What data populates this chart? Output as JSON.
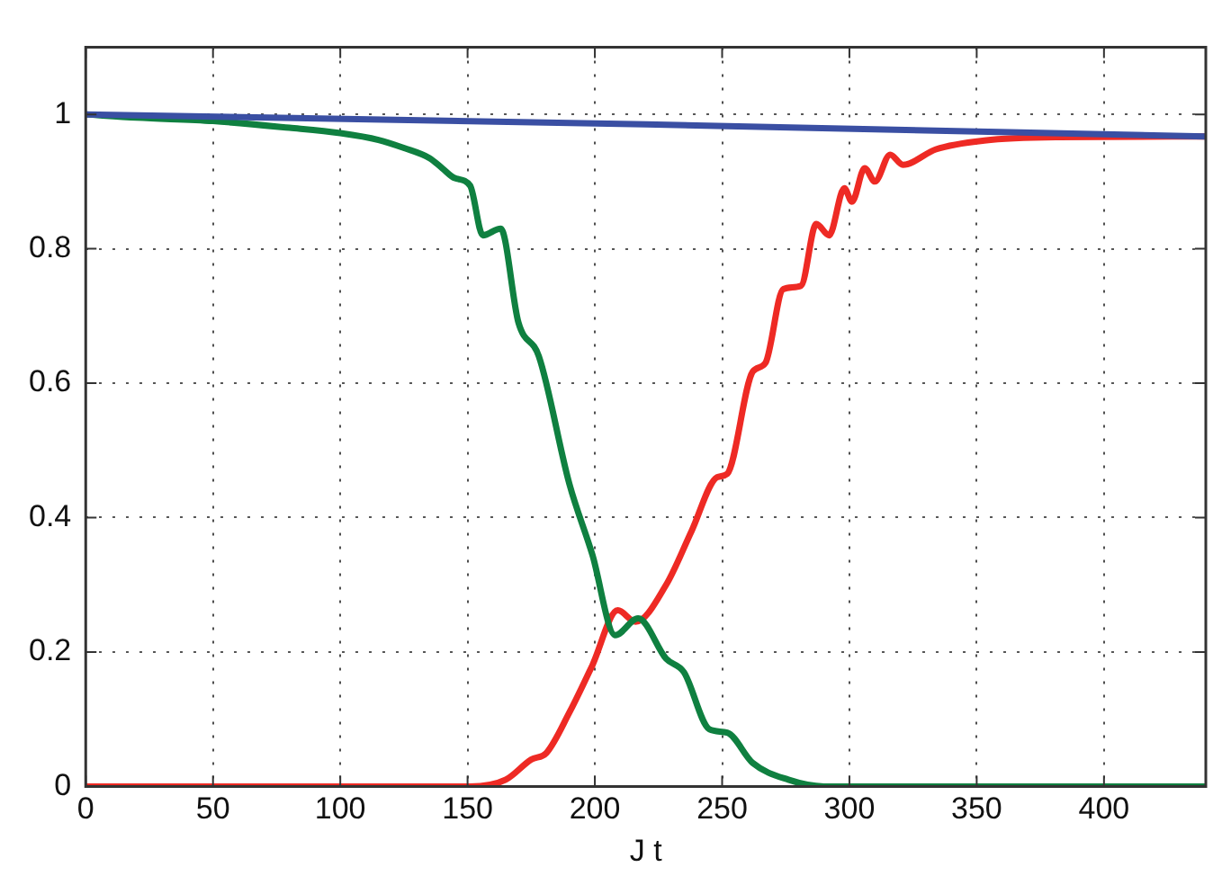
{
  "chart_data": {
    "type": "line",
    "xlabel": "J t",
    "xlim": [
      0,
      440
    ],
    "ylim": [
      0,
      1.1
    ],
    "xticks": [
      0,
      50,
      100,
      150,
      200,
      250,
      300,
      350,
      400
    ],
    "yticks": [
      0,
      0.2,
      0.4,
      0.6,
      0.8,
      1
    ],
    "grid": true,
    "legend": false,
    "marker": "none",
    "line_style": "solid",
    "series": [
      {
        "color": "#3a4fa3",
        "x": [
          0,
          220,
          440
        ],
        "values": [
          1,
          0.985,
          0.967
        ]
      },
      {
        "color": "#0f8040",
        "x": [
          0,
          20,
          50,
          80,
          100,
          115,
          125,
          135,
          140,
          145,
          151,
          156,
          163,
          170,
          178,
          190,
          199,
          208,
          217,
          228,
          235,
          245,
          252,
          262,
          276,
          290,
          440
        ],
        "values": [
          1,
          0.995,
          0.99,
          0.98,
          0.972,
          0.962,
          0.95,
          0.935,
          0.92,
          0.905,
          0.894,
          0.82,
          0.83,
          0.69,
          0.64,
          0.45,
          0.345,
          0.225,
          0.25,
          0.19,
          0.17,
          0.085,
          0.08,
          0.035,
          0.01,
          0,
          0
        ]
      },
      {
        "color": "#ee2a24",
        "x": [
          0,
          151,
          165,
          175,
          181,
          190,
          199,
          209,
          216,
          228,
          238,
          248,
          252,
          262,
          267,
          274,
          281,
          287,
          292,
          298,
          301,
          306,
          310,
          316,
          321,
          334,
          353,
          382,
          440
        ],
        "values": [
          0,
          0,
          0.01,
          0.04,
          0.05,
          0.11,
          0.18,
          0.262,
          0.245,
          0.3,
          0.38,
          0.46,
          0.465,
          0.617,
          0.63,
          0.74,
          0.745,
          0.837,
          0.82,
          0.89,
          0.87,
          0.92,
          0.9,
          0.94,
          0.925,
          0.948,
          0.961,
          0.966,
          0.967
        ]
      }
    ]
  }
}
